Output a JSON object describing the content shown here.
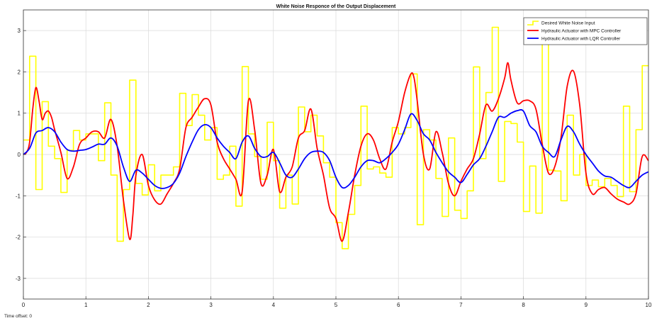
{
  "chart_data": {
    "type": "line",
    "title": "White Noise Responce of the Output Displacement",
    "xlabel": "",
    "ylabel": "",
    "xlim": [
      0,
      10
    ],
    "ylim": [
      -3.5,
      3.5
    ],
    "xticks": [
      0,
      1,
      2,
      3,
      4,
      5,
      6,
      7,
      8,
      9,
      10
    ],
    "yticks": [
      -3,
      -2,
      -1,
      0,
      1,
      2,
      3
    ],
    "grid": true,
    "legend_position": "top-right",
    "series": [
      {
        "name": "Desired White Noise Input",
        "color": "#ffff00",
        "style": "step",
        "x": [
          0,
          0.1,
          0.2,
          0.3,
          0.4,
          0.5,
          0.6,
          0.7,
          0.8,
          0.9,
          1.0,
          1.1,
          1.2,
          1.3,
          1.4,
          1.5,
          1.6,
          1.7,
          1.8,
          1.9,
          2.0,
          2.1,
          2.2,
          2.3,
          2.4,
          2.5,
          2.6,
          2.7,
          2.8,
          2.9,
          3.0,
          3.1,
          3.2,
          3.3,
          3.4,
          3.5,
          3.6,
          3.7,
          3.8,
          3.9,
          4.0,
          4.1,
          4.2,
          4.3,
          4.4,
          4.5,
          4.6,
          4.7,
          4.8,
          4.9,
          5.0,
          5.1,
          5.2,
          5.3,
          5.4,
          5.5,
          5.6,
          5.7,
          5.8,
          5.9,
          6.0,
          6.1,
          6.2,
          6.3,
          6.4,
          6.5,
          6.6,
          6.7,
          6.8,
          6.9,
          7.0,
          7.1,
          7.2,
          7.3,
          7.4,
          7.5,
          7.6,
          7.7,
          7.8,
          7.9,
          8.0,
          8.1,
          8.2,
          8.3,
          8.4,
          8.5,
          8.6,
          8.7,
          8.8,
          8.9,
          9.0,
          9.1,
          9.2,
          9.3,
          9.4,
          9.5,
          9.6,
          9.7,
          9.8,
          9.9
        ],
        "y": [
          0.35,
          2.38,
          -0.85,
          1.28,
          0.2,
          -0.1,
          -0.92,
          0.1,
          0.58,
          0.35,
          0.5,
          0.5,
          -0.15,
          1.25,
          -0.5,
          -2.1,
          -0.85,
          1.8,
          -0.7,
          -0.98,
          -0.25,
          -0.88,
          -0.5,
          -0.5,
          -0.3,
          1.48,
          0.7,
          1.45,
          0.95,
          0.35,
          0.65,
          -0.6,
          -0.5,
          0.2,
          -1.25,
          2.13,
          0.5,
          -0.05,
          -0.6,
          0.78,
          -0.15,
          -1.3,
          -0.5,
          -1.2,
          1.15,
          0.55,
          0.95,
          0.45,
          -0.2,
          -0.55,
          -1.65,
          -2.28,
          -1.45,
          -0.75,
          1.17,
          -0.35,
          -0.3,
          -0.45,
          -0.55,
          0.65,
          0.5,
          0.65,
          1.95,
          -1.7,
          0.6,
          0.35,
          -0.58,
          -1.5,
          0.4,
          -1.35,
          -1.55,
          -0.88,
          2.12,
          -0.1,
          1.5,
          3.08,
          -0.65,
          0.8,
          0.75,
          0.3,
          -1.38,
          -0.28,
          -1.42,
          2.7,
          -0.38,
          -0.4,
          -1.12,
          0.95,
          -0.5,
          0.0,
          -0.75,
          -0.62,
          -0.78,
          -0.58,
          -0.75,
          -1.02,
          1.17,
          -0.9,
          0.6,
          2.15
        ]
      },
      {
        "name": "Hydraulic Actuator with MPC Controller",
        "color": "#ff0000",
        "style": "smooth",
        "x": [
          0,
          0.05,
          0.1,
          0.15,
          0.2,
          0.25,
          0.3,
          0.35,
          0.4,
          0.45,
          0.5,
          0.6,
          0.7,
          0.8,
          0.9,
          1.0,
          1.1,
          1.2,
          1.3,
          1.4,
          1.5,
          1.6,
          1.7,
          1.75,
          1.8,
          1.9,
          2.0,
          2.1,
          2.2,
          2.3,
          2.4,
          2.5,
          2.6,
          2.7,
          2.8,
          2.9,
          3.0,
          3.1,
          3.2,
          3.3,
          3.4,
          3.5,
          3.6,
          3.7,
          3.8,
          3.9,
          4.0,
          4.1,
          4.2,
          4.3,
          4.4,
          4.5,
          4.6,
          4.7,
          4.8,
          4.9,
          5.0,
          5.1,
          5.2,
          5.3,
          5.4,
          5.5,
          5.6,
          5.7,
          5.8,
          5.9,
          6.0,
          6.1,
          6.2,
          6.25,
          6.3,
          6.4,
          6.5,
          6.6,
          6.7,
          6.8,
          6.9,
          7.0,
          7.1,
          7.2,
          7.3,
          7.4,
          7.5,
          7.6,
          7.7,
          7.75,
          7.8,
          7.9,
          8.0,
          8.1,
          8.2,
          8.3,
          8.4,
          8.5,
          8.6,
          8.7,
          8.8,
          8.9,
          9.0,
          9.1,
          9.2,
          9.3,
          9.4,
          9.5,
          9.6,
          9.7,
          9.8,
          9.9,
          10.0
        ],
        "y": [
          0.0,
          0.05,
          0.3,
          1.1,
          1.62,
          1.3,
          0.85,
          1.0,
          1.05,
          0.9,
          0.6,
          0.05,
          -0.58,
          -0.3,
          0.25,
          0.4,
          0.55,
          0.55,
          0.4,
          0.85,
          0.2,
          -1.1,
          -2.05,
          -1.5,
          -0.5,
          0.0,
          -0.75,
          -1.1,
          -1.2,
          -0.95,
          -0.7,
          -0.35,
          0.65,
          0.9,
          1.15,
          1.35,
          1.2,
          0.3,
          -0.1,
          -0.35,
          -0.6,
          -0.9,
          1.3,
          0.6,
          -0.7,
          -0.5,
          0.12,
          -0.9,
          -0.55,
          -0.3,
          0.4,
          0.58,
          1.1,
          0.15,
          -0.5,
          -1.3,
          -1.55,
          -2.1,
          -1.4,
          -0.5,
          0.2,
          0.5,
          0.35,
          -0.1,
          -0.35,
          0.3,
          0.8,
          1.5,
          1.95,
          1.85,
          1.3,
          0.0,
          -0.35,
          0.55,
          0.05,
          -0.7,
          -1.0,
          -0.65,
          -0.35,
          -0.1,
          0.5,
          1.2,
          1.05,
          1.35,
          1.85,
          2.22,
          1.8,
          1.25,
          1.3,
          1.3,
          1.1,
          0.25,
          -0.45,
          -0.3,
          0.4,
          1.65,
          2.02,
          1.2,
          -0.45,
          -0.95,
          -0.85,
          -0.8,
          -0.95,
          -1.08,
          -1.15,
          -1.2,
          -0.95,
          -0.05,
          -0.15
        ]
      },
      {
        "name": "Hydraulic Actuator with LQR Controller",
        "color": "#0000ff",
        "style": "smooth",
        "x": [
          0,
          0.1,
          0.2,
          0.3,
          0.4,
          0.5,
          0.6,
          0.7,
          0.8,
          0.9,
          1.0,
          1.1,
          1.2,
          1.3,
          1.4,
          1.5,
          1.6,
          1.7,
          1.8,
          1.9,
          2.0,
          2.1,
          2.2,
          2.3,
          2.4,
          2.5,
          2.6,
          2.7,
          2.8,
          2.9,
          3.0,
          3.1,
          3.2,
          3.3,
          3.4,
          3.5,
          3.6,
          3.7,
          3.8,
          3.9,
          4.0,
          4.1,
          4.2,
          4.3,
          4.4,
          4.5,
          4.6,
          4.7,
          4.8,
          4.9,
          5.0,
          5.1,
          5.2,
          5.3,
          5.4,
          5.5,
          5.6,
          5.7,
          5.8,
          5.9,
          6.0,
          6.1,
          6.2,
          6.3,
          6.4,
          6.5,
          6.6,
          6.7,
          6.8,
          6.9,
          7.0,
          7.1,
          7.2,
          7.3,
          7.4,
          7.5,
          7.6,
          7.7,
          7.8,
          7.9,
          8.0,
          8.1,
          8.2,
          8.3,
          8.4,
          8.5,
          8.6,
          8.7,
          8.8,
          8.9,
          9.0,
          9.1,
          9.2,
          9.3,
          9.4,
          9.5,
          9.6,
          9.7,
          9.8,
          9.9,
          10.0
        ],
        "y": [
          0.0,
          0.15,
          0.52,
          0.58,
          0.65,
          0.55,
          0.3,
          0.12,
          0.08,
          0.1,
          0.12,
          0.18,
          0.25,
          0.25,
          0.4,
          0.2,
          -0.3,
          -0.65,
          -0.38,
          -0.45,
          -0.6,
          -0.75,
          -0.82,
          -0.8,
          -0.7,
          -0.45,
          -0.05,
          0.3,
          0.6,
          0.72,
          0.65,
          0.4,
          0.2,
          0.05,
          -0.1,
          0.3,
          0.45,
          0.15,
          -0.05,
          -0.05,
          0.05,
          -0.2,
          -0.5,
          -0.55,
          -0.35,
          -0.1,
          0.05,
          0.08,
          0.05,
          -0.15,
          -0.55,
          -0.8,
          -0.75,
          -0.55,
          -0.3,
          -0.15,
          -0.15,
          -0.2,
          -0.1,
          0.05,
          0.25,
          0.6,
          0.98,
          0.82,
          0.5,
          0.35,
          0.05,
          -0.2,
          -0.42,
          -0.55,
          -0.68,
          -0.48,
          -0.25,
          -0.1,
          0.2,
          0.55,
          0.9,
          0.9,
          1.0,
          1.06,
          1.05,
          0.7,
          0.55,
          0.2,
          0.05,
          -0.05,
          0.35,
          0.68,
          0.55,
          0.25,
          0.0,
          -0.2,
          -0.4,
          -0.52,
          -0.55,
          -0.65,
          -0.75,
          -0.8,
          -0.65,
          -0.5,
          -0.42
        ]
      }
    ],
    "footer": {
      "label": "Time offset:",
      "value": "0"
    }
  }
}
